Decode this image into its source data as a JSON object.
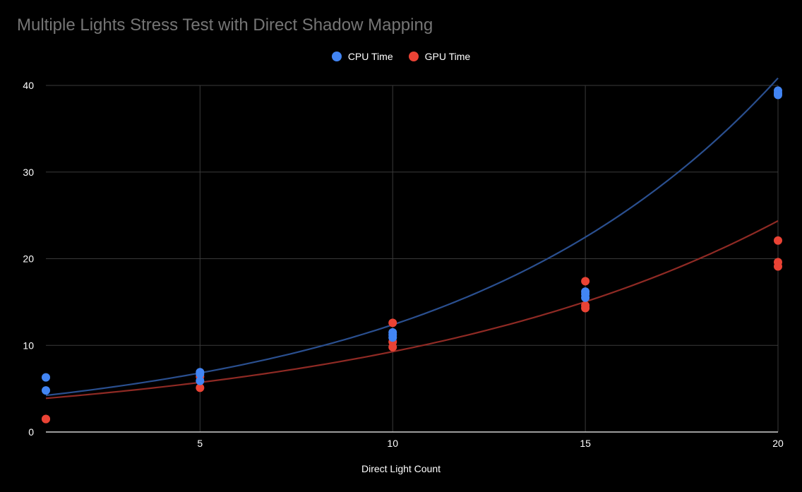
{
  "title": "Multiple Lights Stress Test with Direct Shadow Mapping",
  "colors": {
    "background": "#000000",
    "grid": "#3a3a3a",
    "axis": "#cfcfcf",
    "cpu_point": "#4285f4",
    "gpu_point": "#ea4335",
    "cpu_trend": "#2a4f8f",
    "gpu_trend": "#8f2a24"
  },
  "chart_data": {
    "type": "scatter",
    "title": "Multiple Lights Stress Test with Direct Shadow Mapping",
    "xlabel": "Direct Light Count",
    "ylabel": "",
    "xlim": [
      1,
      20
    ],
    "ylim": [
      0,
      40
    ],
    "x_ticks": [
      "5",
      "10",
      "15",
      "20"
    ],
    "y_ticks": [
      "0",
      "10",
      "20",
      "30",
      "40"
    ],
    "grid": true,
    "legend_position": "top",
    "series": [
      {
        "name": "CPU Time",
        "color": "#4285f4",
        "points": [
          [
            1,
            6.3
          ],
          [
            1,
            4.8
          ],
          [
            5,
            6.9
          ],
          [
            5,
            6.7
          ],
          [
            5,
            5.9
          ],
          [
            10,
            11.5
          ],
          [
            10,
            11.2
          ],
          [
            10,
            10.9
          ],
          [
            15,
            16.2
          ],
          [
            15,
            15.9
          ],
          [
            15,
            15.5
          ],
          [
            20,
            39.4
          ],
          [
            20,
            39.1
          ],
          [
            20,
            38.9
          ]
        ],
        "trendline": {
          "type": "exponential",
          "a": 3.75,
          "b": 0.1194
        }
      },
      {
        "name": "GPU Time",
        "color": "#ea4335",
        "points": [
          [
            1,
            1.5
          ],
          [
            1,
            1.5
          ],
          [
            5,
            6.4
          ],
          [
            5,
            5.1
          ],
          [
            10,
            12.6
          ],
          [
            10,
            10.4
          ],
          [
            10,
            9.8
          ],
          [
            15,
            17.4
          ],
          [
            15,
            14.6
          ],
          [
            15,
            14.3
          ],
          [
            20,
            22.1
          ],
          [
            20,
            19.6
          ],
          [
            20,
            19.1
          ]
        ],
        "trendline": {
          "type": "exponential",
          "a": 3.53,
          "b": 0.0966
        }
      }
    ]
  }
}
